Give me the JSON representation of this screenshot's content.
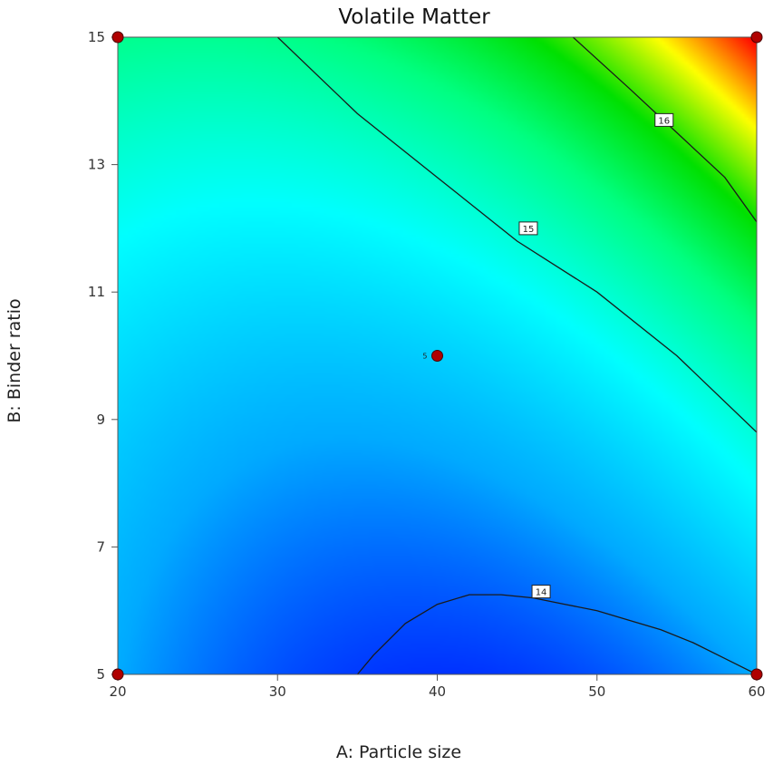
{
  "chart_data": {
    "type": "contour",
    "title": "Volatile Matter",
    "xlabel": "A: Particle size",
    "ylabel": "B: Binder ratio",
    "xlim": [
      20,
      60
    ],
    "ylim": [
      5,
      15
    ],
    "x_ticks": [
      20,
      30,
      40,
      50,
      60
    ],
    "y_ticks": [
      5,
      7,
      9,
      11,
      13,
      15
    ],
    "colorscale": [
      "#0033ff",
      "#00aaff",
      "#00ffff",
      "#00ff80",
      "#00e000",
      "#ffff00",
      "#ff0000"
    ],
    "contours": [
      {
        "level": "14",
        "path": [
          [
            35.0,
            5.0
          ],
          [
            36.0,
            5.3
          ],
          [
            38.0,
            5.8
          ],
          [
            40.0,
            6.1
          ],
          [
            42.0,
            6.25
          ],
          [
            44.0,
            6.25
          ],
          [
            46.0,
            6.2
          ],
          [
            48.0,
            6.1
          ],
          [
            50.0,
            6.0
          ],
          [
            52.0,
            5.85
          ],
          [
            54.0,
            5.7
          ],
          [
            56.0,
            5.5
          ],
          [
            58.0,
            5.25
          ],
          [
            60.0,
            5.0
          ]
        ],
        "label_at": [
          46.5,
          6.3
        ]
      },
      {
        "level": "15",
        "path": [
          [
            30.0,
            15.0
          ],
          [
            35.0,
            13.8
          ],
          [
            40.0,
            12.8
          ],
          [
            45.0,
            11.8
          ],
          [
            50.0,
            11.0
          ],
          [
            55.0,
            10.0
          ],
          [
            60.0,
            8.8
          ]
        ],
        "label_at": [
          45.7,
          12.0
        ]
      },
      {
        "level": "16",
        "path": [
          [
            48.5,
            15.0
          ],
          [
            52.0,
            14.2
          ],
          [
            55.0,
            13.5
          ],
          [
            58.0,
            12.8
          ],
          [
            60.0,
            12.1
          ]
        ],
        "label_at": [
          54.2,
          13.7
        ]
      }
    ],
    "design_points": [
      {
        "x": 20,
        "y": 5,
        "label": ""
      },
      {
        "x": 20,
        "y": 15,
        "label": ""
      },
      {
        "x": 60,
        "y": 5,
        "label": ""
      },
      {
        "x": 60,
        "y": 15,
        "label": ""
      },
      {
        "x": 40,
        "y": 10,
        "label": "5"
      }
    ],
    "grid": false,
    "legend": "none"
  }
}
